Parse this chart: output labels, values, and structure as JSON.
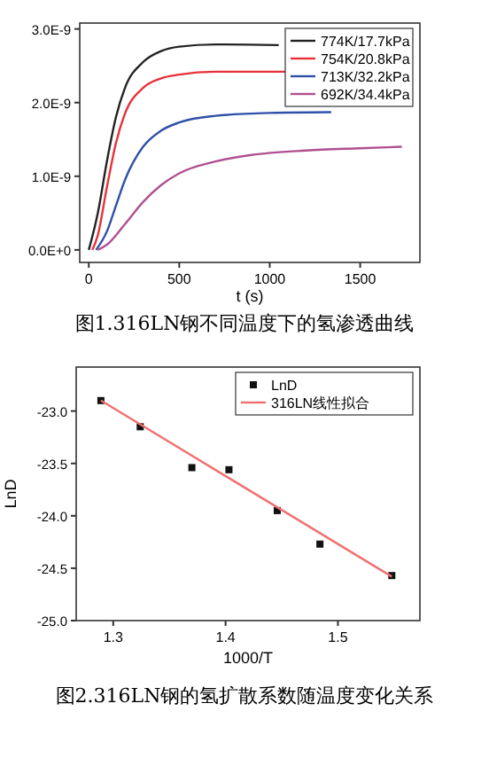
{
  "chart_data": [
    {
      "type": "line",
      "title": "图1.316LN钢不同温度下的氢渗透曲线",
      "xlabel": "t (s)",
      "xlim": [
        -50,
        1830
      ],
      "xticks": [
        0,
        500,
        1000,
        1500
      ],
      "ylim": [
        -1.7e-10,
        3.08e-09
      ],
      "yticks": [
        {
          "value": 0,
          "label": "0.0E+0"
        },
        {
          "value": 1e-09,
          "label": "1.0E-9"
        },
        {
          "value": 2e-09,
          "label": "2.0E-9"
        },
        {
          "value": 3e-09,
          "label": "3.0E-9"
        }
      ],
      "legend": "top right",
      "marker": "none",
      "line_style": "solid",
      "grid": false,
      "series": [
        {
          "name": "774K/17.7kPa",
          "color": "#222222",
          "x": [
            0,
            50,
            100,
            150,
            200,
            300,
            400,
            500,
            700,
            1050
          ],
          "values": [
            0,
            5e-10,
            1.2e-09,
            1.8e-09,
            2.2e-09,
            2.55e-09,
            2.7e-09,
            2.76e-09,
            2.79e-09,
            2.78e-09
          ]
        },
        {
          "name": "754K/20.8kPa",
          "color": "#e8303a",
          "x": [
            20,
            50,
            100,
            150,
            200,
            300,
            400,
            500,
            700,
            1100
          ],
          "values": [
            0,
            2e-10,
            8.5e-10,
            1.45e-09,
            1.85e-09,
            2.2e-09,
            2.33e-09,
            2.38e-09,
            2.42e-09,
            2.42e-09
          ]
        },
        {
          "name": "713K/32.2kPa",
          "color": "#3050a8",
          "x": [
            40,
            100,
            150,
            200,
            300,
            400,
            500,
            700,
            1000,
            1340
          ],
          "values": [
            0,
            2.5e-10,
            6e-10,
            9.5e-10,
            1.4e-09,
            1.62e-09,
            1.73e-09,
            1.82e-09,
            1.86e-09,
            1.87e-09
          ]
        },
        {
          "name": "692K/34.4kPa",
          "color": "#b05090",
          "x": [
            50,
            100,
            200,
            300,
            400,
            500,
            700,
            900,
            1200,
            1500,
            1730
          ],
          "values": [
            0,
            7e-11,
            3.5e-10,
            6.5e-10,
            8.8e-10,
            1.04e-09,
            1.2e-09,
            1.29e-09,
            1.35e-09,
            1.38e-09,
            1.4e-09
          ]
        }
      ]
    },
    {
      "type": "scatter",
      "title": "图2.316LN钢的氢扩散系数随温度变化关系",
      "xlabel": "1000/T",
      "ylabel": "LnD",
      "xlim": [
        1.267,
        1.573
      ],
      "xticks": [
        1.3,
        1.4,
        1.5
      ],
      "ylim": [
        -25,
        -22.58
      ],
      "yticks": [
        {
          "value": -25,
          "label": "-25.0"
        },
        {
          "value": -24.5,
          "label": "-24.5"
        },
        {
          "value": -24,
          "label": "-24.0"
        },
        {
          "value": -23.5,
          "label": "-23.5"
        },
        {
          "value": -23,
          "label": "-23.0"
        }
      ],
      "legend": "top right",
      "grid": false,
      "series": [
        {
          "name": "LnD",
          "marker": "square",
          "color": "#111111",
          "x": [
            1.289,
            1.324,
            1.37,
            1.403,
            1.446,
            1.484,
            1.548
          ],
          "values": [
            -22.9,
            -23.15,
            -23.54,
            -23.56,
            -23.95,
            -24.27,
            -24.57
          ]
        },
        {
          "name": "316LN线性拟合",
          "type": "line",
          "marker": "none",
          "line_style": "solid",
          "color": "#f07070",
          "x": [
            1.289,
            1.548
          ],
          "values": [
            -22.9,
            -24.58
          ]
        }
      ]
    }
  ]
}
